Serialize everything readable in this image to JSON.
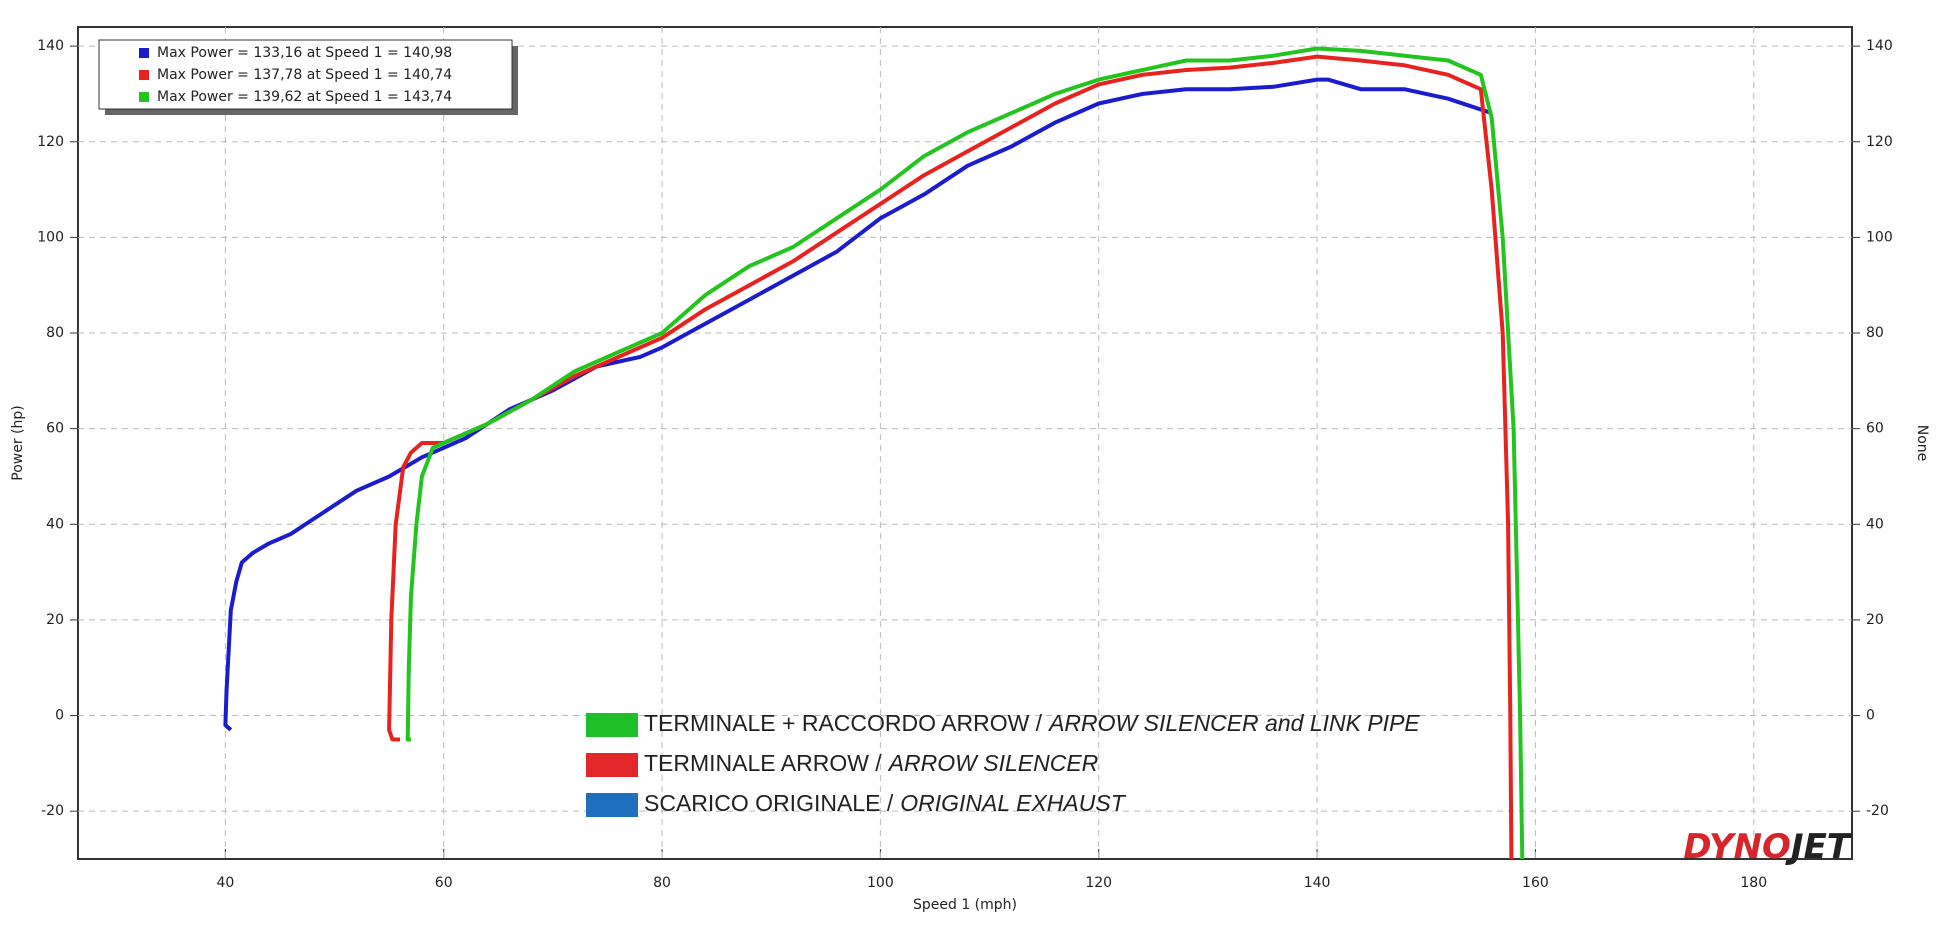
{
  "chart_data": {
    "type": "line",
    "xlabel": "Speed 1 (mph)",
    "ylabel": "Power (hp)",
    "y2label": "None",
    "xlim": [
      26.5,
      189
    ],
    "ylim": [
      -30,
      144
    ],
    "y2lim": [
      -30,
      144
    ],
    "xticks": [
      40,
      60,
      80,
      100,
      120,
      140,
      160,
      180
    ],
    "yticks": [
      -20,
      0,
      20,
      40,
      60,
      80,
      100,
      120,
      140
    ],
    "y2ticks": [
      -20,
      0,
      20,
      40,
      60,
      80,
      100,
      120,
      140
    ],
    "grid": true,
    "legend": "upper left",
    "series": [
      {
        "name": "Max Power = 133,16 at Speed 1 = 140,98",
        "color": "#1c1ccf",
        "x": [
          40.5,
          40.0,
          40.1,
          40.5,
          41,
          41.5,
          42.5,
          44,
          46,
          48,
          50,
          52,
          55,
          58,
          60,
          62,
          64,
          66,
          70,
          74,
          78,
          80,
          84,
          88,
          92,
          96,
          100,
          104,
          108,
          112,
          116,
          120,
          124,
          128,
          132,
          136,
          140,
          141,
          144,
          148,
          152,
          156
        ],
        "values": [
          -3,
          -2,
          5,
          22,
          28,
          32,
          34,
          36,
          38,
          41,
          44,
          47,
          50,
          54,
          56,
          58,
          61,
          64,
          68,
          73,
          75,
          77,
          82,
          87,
          92,
          97,
          104,
          109,
          115,
          119,
          124,
          128,
          130,
          131,
          131,
          131.5,
          133,
          133,
          131,
          131,
          129,
          126
        ]
      },
      {
        "name": "Max Power = 137,78 at Speed 1 = 140,74",
        "color": "#e8231f",
        "x": [
          56,
          55.3,
          55,
          55.2,
          55.6,
          56.3,
          57,
          58,
          60,
          64,
          68,
          72,
          76,
          80,
          84,
          88,
          92,
          96,
          100,
          104,
          108,
          112,
          116,
          120,
          124,
          128,
          132,
          136,
          140,
          144,
          148,
          152,
          155,
          156,
          157,
          157.5,
          157.7,
          157.8
        ],
        "values": [
          -5,
          -5,
          -3,
          20,
          40,
          52,
          55,
          57,
          57,
          61,
          66,
          71,
          75,
          79,
          85,
          90,
          95,
          101,
          107,
          113,
          118,
          123,
          128,
          132,
          134,
          135,
          135.5,
          136.5,
          137.8,
          137,
          136,
          134,
          131,
          110,
          80,
          40,
          0,
          -30
        ]
      },
      {
        "name": "Max Power = 139,62 at Speed 1 = 143,74",
        "color": "#22c41e",
        "x": [
          57,
          56.7,
          56.8,
          57,
          57.5,
          58,
          59,
          60,
          64,
          68,
          72,
          76,
          80,
          84,
          88,
          92,
          96,
          100,
          104,
          108,
          112,
          116,
          120,
          124,
          128,
          132,
          136,
          140,
          144,
          148,
          152,
          155,
          156,
          157,
          158,
          158.3,
          158.6,
          158.8
        ],
        "values": [
          -5,
          -5,
          10,
          25,
          40,
          50,
          56,
          57,
          61,
          66,
          72,
          76,
          80,
          88,
          94,
          98,
          104,
          110,
          117,
          122,
          126,
          130,
          133,
          135,
          137,
          137,
          138,
          139.5,
          139,
          138,
          137,
          134,
          125,
          100,
          60,
          30,
          0,
          -30
        ]
      }
    ],
    "annotations": [
      {
        "color": "#1fbf2a",
        "text": "TERMINALE + RACCORDO ARROW /",
        "italic": "ARROW SILENCER and LINK PIPE"
      },
      {
        "color": "#e3262a",
        "text": "TERMINALE ARROW /",
        "italic": "ARROW SILENCER"
      },
      {
        "color": "#1f6fbf",
        "text": "SCARICO ORIGINALE /",
        "italic": "ORIGINAL EXHAUST"
      }
    ],
    "logo": [
      "DYNO",
      "JET"
    ]
  }
}
